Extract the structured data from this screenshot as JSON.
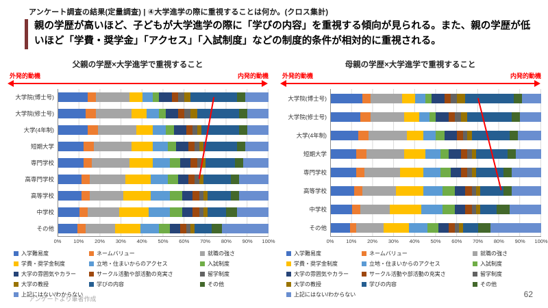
{
  "header": {
    "kicker": "アンケート調査の結果(定量調査) | ④大学進学の際に重視することは何か。(クロス集計)",
    "headline": "親の学歴が高いほど、子どもが大学進学の際に「学びの内容」を重視する傾向が見られる。また、親の学歴が低いほど「学費・奨学金」「アクセス」「入試制度」などの制度的条件が相対的に重視される。",
    "accent_color": "#7e3434"
  },
  "chart_data": {
    "type": "bar",
    "layout": "horizontal-stacked-100",
    "annotation_color": "#ff0000",
    "x_ticks": [
      "0%",
      "10%",
      "20%",
      "30%",
      "40%",
      "50%",
      "60%",
      "70%",
      "80%",
      "90%",
      "100%"
    ],
    "charts": [
      {
        "title": "父親の学歴×大学進学で重視すること",
        "left_note": "外発的動機",
        "right_note": "内発的動機",
        "categories": [
          "大学院(博士号)",
          "大学院(修士号)",
          "大学(4年制)",
          "短期大学",
          "専門学校",
          "高専門学校",
          "高等学校",
          "中学校",
          "その他"
        ],
        "series": [
          {
            "name": "入学難易度",
            "color": "#4472C4",
            "values": [
              14,
              13,
              14,
              12,
              12,
              11,
              11,
              10,
              9
            ]
          },
          {
            "name": "ネームバリュー",
            "color": "#ED7D31",
            "values": [
              4,
              5,
              5,
              5,
              4,
              4,
              4,
              4,
              4
            ]
          },
          {
            "name": "就職の強さ",
            "color": "#A5A5A5",
            "values": [
              16,
              17,
              18,
              18,
              18,
              17,
              16,
              15,
              14
            ]
          },
          {
            "name": "学費・奨学金制度",
            "color": "#FFC000",
            "values": [
              6,
              7,
              8,
              10,
              11,
              12,
              13,
              14,
              12
            ]
          },
          {
            "name": "立地・住まいからのアクセス",
            "color": "#5B9BD5",
            "values": [
              5,
              6,
              6,
              7,
              8,
              8,
              9,
              10,
              9
            ]
          },
          {
            "name": "入試制度",
            "color": "#70AD47",
            "values": [
              3,
              3,
              4,
              4,
              5,
              5,
              6,
              6,
              5
            ]
          },
          {
            "name": "大学の雰囲気やカラー",
            "color": "#264478",
            "values": [
              6,
              6,
              6,
              6,
              5,
              5,
              5,
              5,
              5
            ]
          },
          {
            "name": "サークル活動や部活動の充実さ",
            "color": "#9E480E",
            "values": [
              3,
              3,
              3,
              3,
              3,
              3,
              3,
              3,
              3
            ]
          },
          {
            "name": "留学制度",
            "color": "#636363",
            "values": [
              3,
              3,
              2,
              2,
              2,
              2,
              2,
              2,
              2
            ]
          },
          {
            "name": "大学の教授",
            "color": "#997300",
            "values": [
              3,
              3,
              2,
              2,
              2,
              2,
              2,
              2,
              2
            ]
          },
          {
            "name": "学びの内容",
            "color": "#255E91",
            "values": [
              22,
              20,
              18,
              16,
              14,
              13,
              11,
              9,
              8
            ]
          },
          {
            "name": "その他",
            "color": "#43682B",
            "values": [
              4,
              4,
              4,
              4,
              4,
              4,
              4,
              5,
              5
            ]
          },
          {
            "name": "上記にはない/わからない",
            "color": "#698ED0",
            "values": [
              11,
              10,
              10,
              11,
              12,
              14,
              14,
              15,
              22
            ]
          }
        ],
        "trend_line": {
          "from": {
            "row": 0,
            "x": 74
          },
          "to": {
            "row": 5,
            "x": 67
          }
        }
      },
      {
        "title": "母親の学歴×大学進学で重視すること",
        "left_note": "外発的動機",
        "right_note": "内発的動機",
        "categories": [
          "大学院(博士号)",
          "大学院(修士号)",
          "大学(4年制)",
          "短期大学",
          "専門学校",
          "高等学校",
          "中学校",
          "その他"
        ],
        "series": [
          {
            "name": "入学難易度",
            "color": "#4472C4",
            "values": [
              15,
              14,
              13,
              12,
              12,
              11,
              10,
              9
            ]
          },
          {
            "name": "ネームバリュー",
            "color": "#ED7D31",
            "values": [
              4,
              5,
              5,
              5,
              4,
              4,
              4,
              3
            ]
          },
          {
            "name": "就職の強さ",
            "color": "#A5A5A5",
            "values": [
              15,
              16,
              18,
              18,
              17,
              16,
              14,
              13
            ]
          },
          {
            "name": "学費・奨学金制度",
            "color": "#FFC000",
            "values": [
              6,
              7,
              8,
              10,
              11,
              13,
              15,
              12
            ]
          },
          {
            "name": "立地・住まいからのアクセス",
            "color": "#5B9BD5",
            "values": [
              5,
              5,
              6,
              7,
              8,
              9,
              10,
              9
            ]
          },
          {
            "name": "入試制度",
            "color": "#70AD47",
            "values": [
              3,
              3,
              4,
              4,
              5,
              6,
              6,
              5
            ]
          },
          {
            "name": "大学の雰囲気やカラー",
            "color": "#264478",
            "values": [
              6,
              6,
              6,
              6,
              5,
              5,
              5,
              5
            ]
          },
          {
            "name": "サークル活動や部活動の充実さ",
            "color": "#9E480E",
            "values": [
              3,
              3,
              3,
              3,
              3,
              3,
              3,
              3
            ]
          },
          {
            "name": "留学制度",
            "color": "#636363",
            "values": [
              3,
              3,
              2,
              2,
              2,
              2,
              2,
              2
            ]
          },
          {
            "name": "大学の教授",
            "color": "#997300",
            "values": [
              4,
              3,
              2,
              2,
              2,
              2,
              2,
              2
            ]
          },
          {
            "name": "学びの内容",
            "color": "#255E91",
            "values": [
              23,
              21,
              18,
              15,
              13,
              11,
              8,
              7
            ]
          },
          {
            "name": "その他",
            "color": "#43682B",
            "values": [
              4,
              4,
              4,
              4,
              4,
              4,
              6,
              6
            ]
          },
          {
            "name": "上記にはない/わからない",
            "color": "#698ED0",
            "values": [
              9,
              10,
              11,
              12,
              14,
              14,
              15,
              24
            ]
          }
        ],
        "trend_line": {
          "from": {
            "row": 0,
            "x": 70
          },
          "to": {
            "row": 5,
            "x": 81
          }
        }
      }
    ]
  },
  "footer": {
    "source": "アンケートより筆者作成",
    "page": "62"
  }
}
